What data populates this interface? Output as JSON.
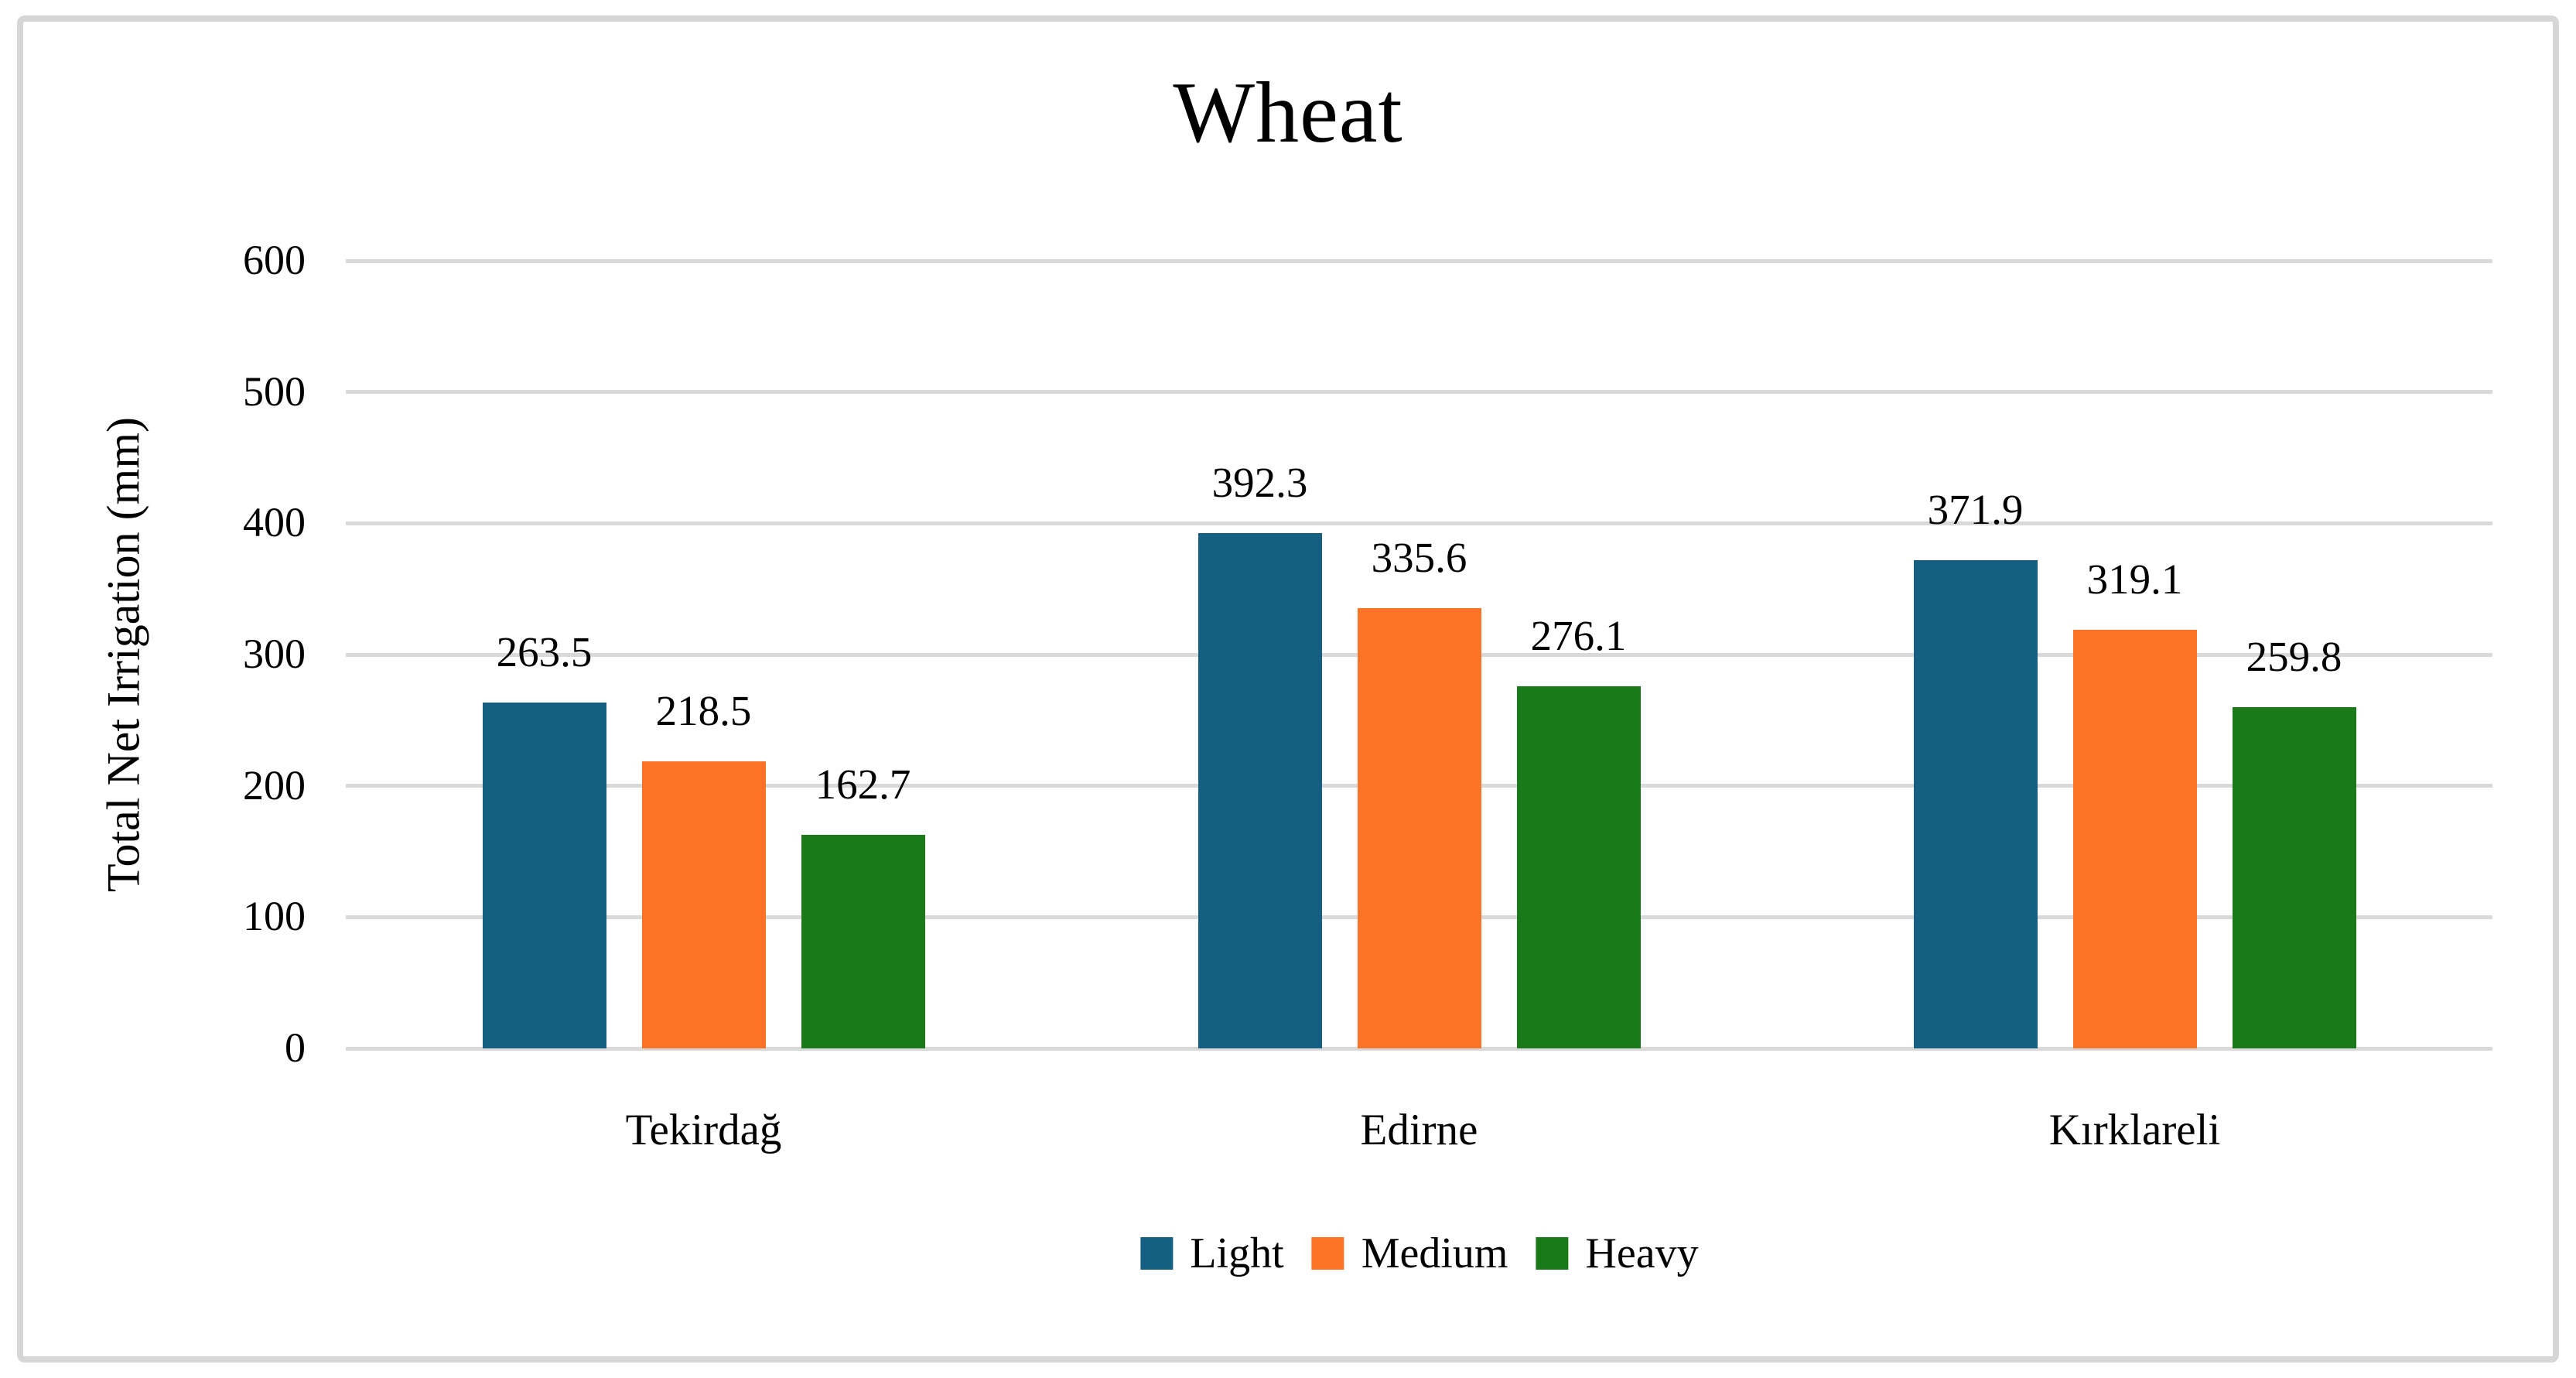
{
  "chart_data": {
    "type": "bar",
    "title": "Wheat",
    "ylabel": "Total Net Irrigation (mm)",
    "xlabel": "",
    "categories": [
      "Tekirdağ",
      "Edirne",
      "Kırklareli"
    ],
    "series": [
      {
        "name": "Light",
        "color": "#156082",
        "values": [
          263.5,
          392.3,
          371.9
        ]
      },
      {
        "name": "Medium",
        "color": "#fa7327",
        "values": [
          218.5,
          335.6,
          319.1
        ]
      },
      {
        "name": "Heavy",
        "color": "#1a7a1a",
        "values": [
          162.7,
          276.1,
          259.8
        ]
      }
    ],
    "data_labels": [
      "263.5",
      "218.5",
      "162.7",
      "392.3",
      "335.6",
      "276.1",
      "371.9",
      "319.1",
      "259.8"
    ],
    "ylim": [
      0,
      600
    ],
    "yticks": [
      "0",
      "100",
      "200",
      "300",
      "400",
      "500",
      "600"
    ],
    "grid": true,
    "gridline_color": "#d9d9d9",
    "legend_position": "bottom",
    "legend_entries": [
      "Light",
      "Medium",
      "Heavy"
    ]
  }
}
